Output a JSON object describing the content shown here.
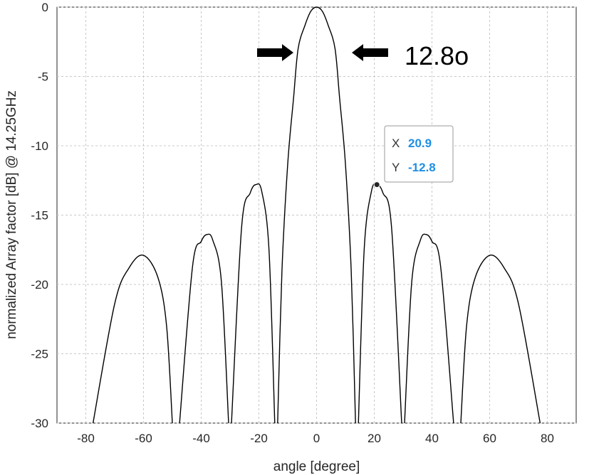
{
  "chart_data": {
    "type": "line",
    "title": "",
    "xlabel": "angle [degree]",
    "ylabel": "normalized Array factor [dB] @ 14.25GHz",
    "xlim": [
      -90,
      90
    ],
    "ylim": [
      -30,
      0
    ],
    "xticks": [
      -80,
      -60,
      -40,
      -20,
      0,
      20,
      40,
      60,
      80
    ],
    "yticks": [
      0,
      -5,
      -10,
      -15,
      -20,
      -25,
      -30
    ],
    "xtick_labels": [
      "-80",
      "-60",
      "-40",
      "-20",
      "0",
      "20",
      "40",
      "60",
      "80"
    ],
    "ytick_labels": [
      "0",
      "-5",
      "-10",
      "-15",
      "-20",
      "-25",
      "-30"
    ],
    "grid": true,
    "series": [
      {
        "color": "#000000",
        "lobes": [
          {
            "x": [
              -77.5,
              -70,
              -65,
              -60,
              -55,
              -52,
              -50
            ],
            "y": [
              -30,
              -21.4,
              -18.8,
              -17.9,
              -19.5,
              -23.0,
              -30
            ]
          },
          {
            "x": [
              -47.5,
              -43,
              -40,
              -38,
              -36,
              -33,
              -30.5
            ],
            "y": [
              -30,
              -18.7,
              -16.9,
              -16.4,
              -16.8,
              -19.8,
              -30
            ]
          },
          {
            "x": [
              -29.5,
              -26,
              -23,
              -21,
              -19,
              -16.5,
              -14.5
            ],
            "y": [
              -30,
              -15.9,
              -13.4,
              -12.8,
              -13.3,
              -17.5,
              -30
            ]
          },
          {
            "x": [
              -13.5,
              -12,
              -10,
              -8,
              -6.4,
              -4,
              -2,
              0,
              2,
              4,
              6.4,
              8,
              10,
              12,
              13.5
            ],
            "y": [
              -30,
              -19.0,
              -11.3,
              -6.6,
              -3.0,
              -1.3,
              -0.3,
              0,
              -0.3,
              -1.3,
              -3.0,
              -6.6,
              -11.3,
              -19.0,
              -30
            ]
          },
          {
            "x": [
              14.5,
              16.5,
              19,
              20.9,
              23,
              26,
              29.5
            ],
            "y": [
              -30,
              -17.5,
              -13.3,
              -12.8,
              -13.4,
              -15.9,
              -30
            ]
          },
          {
            "x": [
              30.5,
              33,
              36,
              38,
              40,
              43,
              47.5
            ],
            "y": [
              -30,
              -19.8,
              -16.8,
              -16.4,
              -16.9,
              -18.7,
              -30
            ]
          },
          {
            "x": [
              50,
              52,
              55,
              60,
              65,
              70,
              77.5
            ],
            "y": [
              -30,
              -23.0,
              -19.5,
              -17.9,
              -18.8,
              -21.4,
              -30
            ]
          }
        ]
      }
    ],
    "annotations": {
      "beamwidth_label": "12.8o",
      "datatip": {
        "x_key": "X",
        "x_value": "20.9",
        "y_key": "Y",
        "y_value": "-12.8",
        "point": {
          "x": 20.9,
          "y": -12.8
        },
        "value_color": "#1e8fe6"
      }
    }
  }
}
